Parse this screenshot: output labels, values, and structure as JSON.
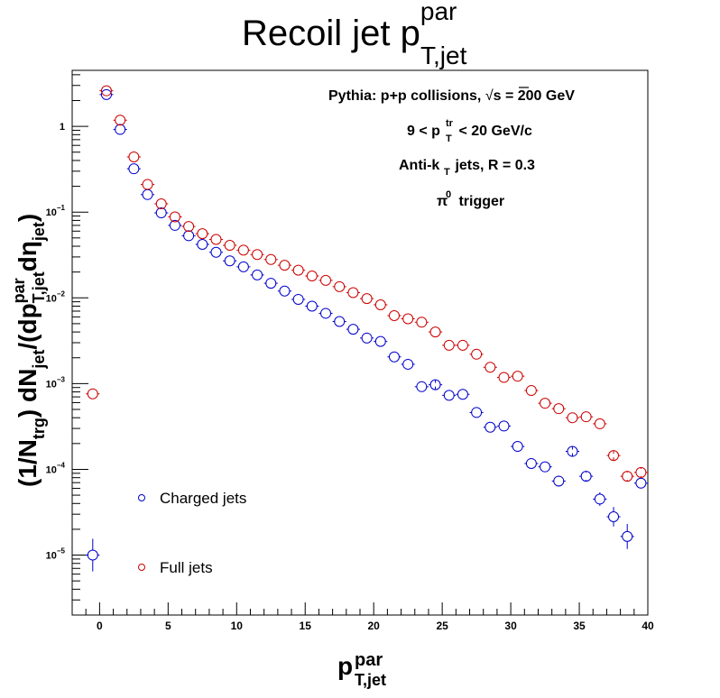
{
  "chart_data": {
    "type": "scatter",
    "title": {
      "base": "Recoil jet p",
      "sup": "par",
      "sub": "T,jet"
    },
    "xlabel": {
      "base": "p",
      "sup": "par",
      "sub": "T,jet"
    },
    "ylabel": {
      "p1": "(1/N",
      "p1sub": "trg",
      "p2": ") dN",
      "p2sub": "jet",
      "p3": "/(dp",
      "p3sup": "par",
      "p3sub": "T,jet",
      "p4": "dη",
      "p4sub": "jet",
      "p5": ")"
    },
    "annotations": {
      "line1_a": "Pythia: p+p collisions,  ",
      "line1_b": "s",
      "line1_c": " = 200 GeV",
      "line2_a": "9 < p",
      "line2_sup": "tr",
      "line2_sub": "T",
      "line2_b": " < 20 GeV/c",
      "line3_a": "Anti-k",
      "line3_sub": "T",
      "line3_b": " jets, R = 0.3",
      "line4_a": "π",
      "line4_sup": "0",
      "line4_b": " trigger"
    },
    "x_range": [
      -2,
      40
    ],
    "y_range": [
      2e-06,
      4.5
    ],
    "y_scale": "log",
    "x_ticks": [
      0,
      5,
      10,
      15,
      20,
      25,
      30,
      35,
      40
    ],
    "y_ticks": [
      {
        "value": 1e-05,
        "base": "10",
        "exp": "−5"
      },
      {
        "value": 0.0001,
        "base": "10",
        "exp": "−4"
      },
      {
        "value": 0.001,
        "base": "10",
        "exp": "−3"
      },
      {
        "value": 0.01,
        "base": "10",
        "exp": "−2"
      },
      {
        "value": 0.1,
        "base": "10",
        "exp": "−1"
      },
      {
        "value": 1,
        "base": "1",
        "exp": ""
      }
    ],
    "legend_position": "bottom-left",
    "series": [
      {
        "name": "Charged jets",
        "color": "#0000cc",
        "x": [
          -0.5,
          0.5,
          1.5,
          2.5,
          3.5,
          4.5,
          5.5,
          6.5,
          7.5,
          8.5,
          9.5,
          10.5,
          11.5,
          12.5,
          13.5,
          14.5,
          15.5,
          16.5,
          17.5,
          18.5,
          19.5,
          20.5,
          21.5,
          22.5,
          23.5,
          24.5,
          25.5,
          26.5,
          27.5,
          28.5,
          29.5,
          30.5,
          31.5,
          32.5,
          33.5,
          34.5,
          35.5,
          36.5,
          37.5,
          38.5,
          39.5
        ],
        "y": [
          1e-05,
          2.35,
          0.92,
          0.32,
          0.16,
          0.098,
          0.07,
          0.053,
          0.042,
          0.034,
          0.027,
          0.023,
          0.0185,
          0.0148,
          0.012,
          0.0096,
          0.008,
          0.0066,
          0.0053,
          0.0043,
          0.0034,
          0.0031,
          0.00205,
          0.00168,
          0.00092,
          0.00097,
          0.00073,
          0.00075,
          0.00046,
          0.00031,
          0.00032,
          0.000185,
          0.000117,
          0.000107,
          7.3e-05,
          0.000162,
          8.3e-05,
          4.5e-05,
          2.8e-05,
          1.65e-05,
          6.9e-05
        ],
        "yerr_factor": [
          1.55,
          1.0,
          1.0,
          1.0,
          1.0,
          1.0,
          1.0,
          1.0,
          1.0,
          1.0,
          1.0,
          1.0,
          1.0,
          1.0,
          1.0,
          1.0,
          1.0,
          1.0,
          1.0,
          1.0,
          1.0,
          1.0,
          1.0,
          1.0,
          1.0,
          1.05,
          1.0,
          1.0,
          1.0,
          1.0,
          1.0,
          1.0,
          1.0,
          1.0,
          1.12,
          1.05,
          1.1,
          1.2,
          1.3,
          1.4,
          1.15
        ]
      },
      {
        "name": "Full jets",
        "color": "#cc0000",
        "x": [
          -0.5,
          0.5,
          1.5,
          2.5,
          3.5,
          4.5,
          5.5,
          6.5,
          7.5,
          8.5,
          9.5,
          10.5,
          11.5,
          12.5,
          13.5,
          14.5,
          15.5,
          16.5,
          17.5,
          18.5,
          19.5,
          20.5,
          21.5,
          22.5,
          23.5,
          24.5,
          25.5,
          26.5,
          27.5,
          28.5,
          29.5,
          30.5,
          31.5,
          32.5,
          33.5,
          34.5,
          35.5,
          36.5,
          37.5,
          38.5,
          39.5
        ],
        "y": [
          0.00076,
          2.6,
          1.18,
          0.44,
          0.21,
          0.125,
          0.088,
          0.068,
          0.056,
          0.048,
          0.041,
          0.036,
          0.032,
          0.028,
          0.024,
          0.021,
          0.018,
          0.016,
          0.0135,
          0.0115,
          0.0098,
          0.0083,
          0.0062,
          0.0057,
          0.0052,
          0.004,
          0.0028,
          0.0028,
          0.0022,
          0.00155,
          0.00118,
          0.00122,
          0.00083,
          0.00059,
          0.00051,
          0.0004,
          0.00041,
          0.00034,
          0.000145,
          8.3e-05,
          9.2e-05
        ],
        "yerr_factor": [
          1.0,
          1.0,
          1.0,
          1.0,
          1.0,
          1.0,
          1.0,
          1.0,
          1.0,
          1.0,
          1.0,
          1.0,
          1.0,
          1.0,
          1.0,
          1.0,
          1.0,
          1.0,
          1.0,
          1.0,
          1.0,
          1.0,
          1.0,
          1.0,
          1.0,
          1.0,
          1.0,
          1.0,
          1.0,
          1.0,
          1.0,
          1.0,
          1.0,
          1.0,
          1.0,
          1.0,
          1.0,
          1.0,
          1.05,
          1.1,
          1.1
        ]
      }
    ]
  }
}
